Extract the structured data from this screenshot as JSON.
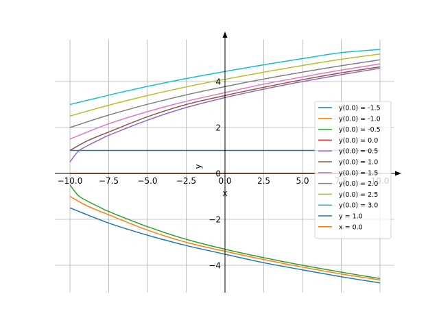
{
  "chart_data": {
    "type": "line",
    "xlabel": "x",
    "ylabel": "y",
    "xlim": [
      -10.5,
      10.5
    ],
    "ylim": [
      -5.2,
      6.2
    ],
    "grid": true,
    "legend_position": "right",
    "xticks": [
      -10.0,
      -7.5,
      -5.0,
      -2.5,
      0.0,
      2.5,
      5.0,
      7.5,
      10.0
    ],
    "xtick_labels": [
      "−10.0",
      "−7.5",
      "−5.0",
      "−2.5",
      "0.0",
      "2.5",
      "5.0",
      "7.5",
      "10.0"
    ],
    "yticks": [
      -4,
      -2,
      0,
      2,
      4
    ],
    "ytick_labels": [
      "−4",
      "−2",
      "0",
      "2",
      "4"
    ],
    "series": [
      {
        "name": "y(0.0) = -1.5",
        "color": "#1f77b4",
        "x": [
          -10,
          -7.5,
          -5,
          -2.5,
          0,
          2.5,
          5,
          7.5,
          10
        ],
        "y": [
          -1.5,
          -2.16,
          -2.69,
          -3.14,
          -3.52,
          -3.89,
          -4.2,
          -4.5,
          -4.77
        ]
      },
      {
        "name": "y(0.0) = -1.0",
        "color": "#ff7f0e",
        "x": [
          -10,
          -9,
          -8,
          -7.5,
          -5,
          -2.5,
          0,
          2.5,
          5,
          7.5,
          10
        ],
        "y": [
          -1.0,
          -1.38,
          -1.67,
          -1.8,
          -2.47,
          -3.0,
          -3.39,
          -3.75,
          -4.08,
          -4.38,
          -4.64
        ]
      },
      {
        "name": "y(0.0) = -0.5",
        "color": "#2ca02c",
        "x": [
          -10,
          -9.5,
          -9,
          -8,
          -7.5,
          -5,
          -2.5,
          0,
          2.5,
          5,
          7.5,
          10
        ],
        "y": [
          -0.5,
          -0.94,
          -1.16,
          -1.5,
          -1.66,
          -2.32,
          -2.87,
          -3.3,
          -3.67,
          -4.0,
          -4.3,
          -4.58
        ]
      },
      {
        "name": "y(0.0) = 0.0",
        "color": "#d62728",
        "x": [
          -10,
          10
        ],
        "y": [
          0.0,
          0.0
        ]
      },
      {
        "name": "y(0.0) = 0.5",
        "color": "#9467bd",
        "x": [
          -10,
          -9.5,
          -9,
          -8,
          -7.5,
          -5,
          -2.5,
          0,
          2.5,
          5,
          7.5,
          10
        ],
        "y": [
          0.5,
          0.94,
          1.16,
          1.5,
          1.66,
          2.32,
          2.87,
          3.3,
          3.67,
          4.0,
          4.3,
          4.58
        ]
      },
      {
        "name": "y(0.0) = 1.0",
        "color": "#8c564b",
        "x": [
          -10,
          -9,
          -8,
          -7.5,
          -5,
          -2.5,
          0,
          2.5,
          5,
          7.5,
          10
        ],
        "y": [
          1.0,
          1.38,
          1.67,
          1.8,
          2.47,
          3.0,
          3.39,
          3.75,
          4.08,
          4.38,
          4.64
        ]
      },
      {
        "name": "y(0.0) = 1.5",
        "color": "#e377c2",
        "x": [
          -10,
          -7.5,
          -5,
          -2.5,
          0,
          2.5,
          5,
          7.5,
          10
        ],
        "y": [
          1.5,
          2.16,
          2.69,
          3.14,
          3.52,
          3.89,
          4.2,
          4.5,
          4.77
        ]
      },
      {
        "name": "y(0.0) = 2.0",
        "color": "#7f7f7f",
        "x": [
          -10,
          -7.5,
          -5,
          -2.5,
          0,
          2.5,
          5,
          7.5,
          10
        ],
        "y": [
          2.0,
          2.54,
          3.01,
          3.42,
          3.78,
          4.11,
          4.41,
          4.69,
          4.95
        ]
      },
      {
        "name": "y(0.0) = 2.5",
        "color": "#bcbd22",
        "x": [
          -10,
          -7.5,
          -5,
          -2.5,
          0,
          2.5,
          5,
          7.5,
          10
        ],
        "y": [
          2.5,
          2.97,
          3.39,
          3.77,
          4.1,
          4.41,
          4.7,
          4.97,
          5.2
        ]
      },
      {
        "name": "y(0.0) = 3.0",
        "color": "#17becf",
        "x": [
          -10,
          -7.5,
          -5,
          -2.5,
          0,
          2.5,
          5,
          7.5,
          10
        ],
        "y": [
          3.0,
          3.41,
          3.79,
          4.13,
          4.44,
          4.73,
          5.0,
          5.26,
          5.4
        ]
      },
      {
        "name": "y = 1.0",
        "color": "#1f77b4",
        "x": [
          -10,
          10
        ],
        "y": [
          1.0,
          1.0
        ]
      },
      {
        "name": "x = 0.0",
        "color": "#ff7f0e",
        "x": [
          -10,
          10
        ],
        "y": [
          0.0,
          0.0
        ]
      }
    ]
  }
}
